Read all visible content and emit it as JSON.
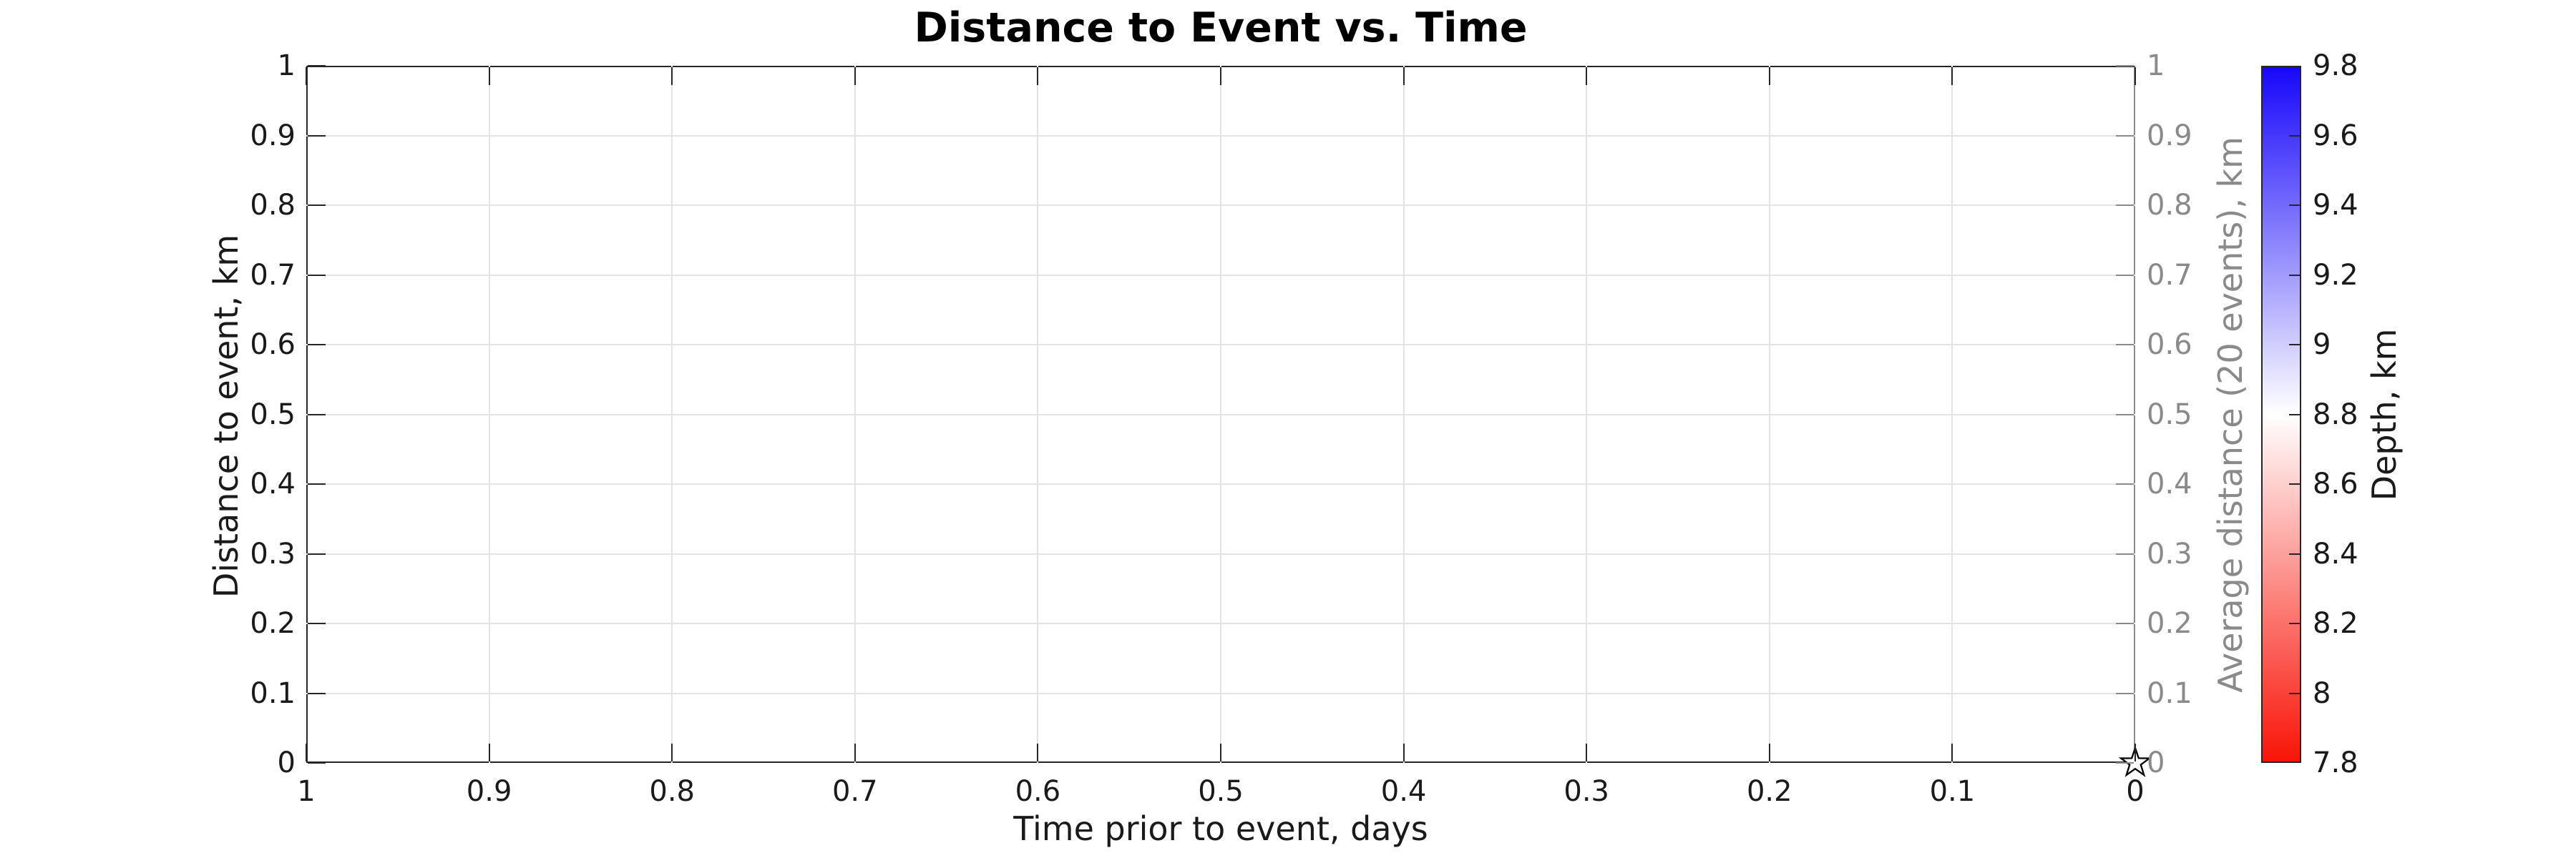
{
  "figure": {
    "title": "Distance to Event vs. Time"
  },
  "axes": {
    "x": {
      "label": "Time prior to event, days",
      "ticks": [
        "1",
        "0.9",
        "0.8",
        "0.7",
        "0.6",
        "0.5",
        "0.4",
        "0.3",
        "0.2",
        "0.1",
        "0"
      ]
    },
    "y_left": {
      "label": "Distance to event, km",
      "ticks": [
        "0",
        "0.1",
        "0.2",
        "0.3",
        "0.4",
        "0.5",
        "0.6",
        "0.7",
        "0.8",
        "0.9",
        "1"
      ]
    },
    "y_right": {
      "label": "Average distance (20 events), km",
      "ticks": [
        "0",
        "0.1",
        "0.2",
        "0.3",
        "0.4",
        "0.5",
        "0.6",
        "0.7",
        "0.8",
        "0.9",
        "1"
      ]
    }
  },
  "colorbar": {
    "label": "Depth, km",
    "ticks": [
      "7.8",
      "8",
      "8.2",
      "8.4",
      "8.6",
      "8.8",
      "9",
      "9.2",
      "9.4",
      "9.6",
      "9.8"
    ],
    "gradient_top": "#1707fa",
    "gradient_mid": "#ffffff",
    "gradient_bottom": "#f91408"
  },
  "colors": {
    "axis": "#262626",
    "right_axis": "#8a8a8a",
    "grid": "#e4e4e4",
    "text": "#1a1a1a",
    "marker_fill": "#ffffff",
    "marker_stroke": "#000000"
  },
  "chart_data": {
    "type": "scatter",
    "title": "Distance to Event vs. Time",
    "xlabel": "Time prior to event, days",
    "ylabel": "Distance to event, km",
    "ylabel_right": "Average distance (20 events), km",
    "xlim": [
      1,
      0
    ],
    "ylim": [
      0,
      1
    ],
    "x_axis_reversed": true,
    "xticks": [
      1,
      0.9,
      0.8,
      0.7,
      0.6,
      0.5,
      0.4,
      0.3,
      0.2,
      0.1,
      0
    ],
    "yticks": [
      0,
      0.1,
      0.2,
      0.3,
      0.4,
      0.5,
      0.6,
      0.7,
      0.8,
      0.9,
      1
    ],
    "grid": true,
    "legend": "none",
    "series": [
      {
        "name": "event-marker",
        "marker": "pentagram",
        "marker_fill": "white",
        "marker_edge": "black",
        "x": [
          0
        ],
        "y": [
          0
        ]
      }
    ],
    "colorbar": {
      "label": "Depth, km",
      "range": [
        7.8,
        9.8
      ],
      "ticks": [
        7.8,
        8,
        8.2,
        8.4,
        8.6,
        8.8,
        9,
        9.2,
        9.4,
        9.6,
        9.8
      ],
      "colormap": "red-white-blue (red=low, blue=high)",
      "position": "right"
    }
  }
}
